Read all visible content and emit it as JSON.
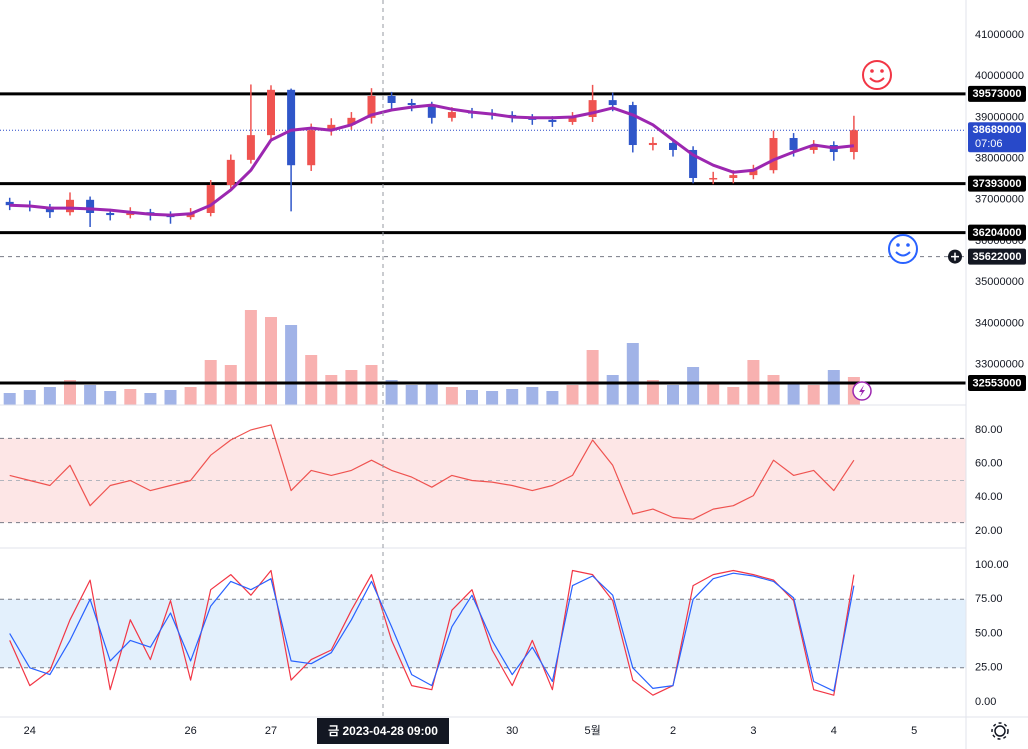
{
  "chart_data": [
    {
      "type": "candlestick",
      "categories": [
        null,
        "24",
        null,
        null,
        null,
        null,
        null,
        null,
        null,
        "26",
        null,
        null,
        null,
        "27",
        null,
        null,
        null,
        null,
        null,
        null,
        null,
        null,
        null,
        null,
        null,
        "30",
        null,
        null,
        null,
        "5월",
        null,
        null,
        null,
        "2",
        null,
        null,
        null,
        "3",
        null,
        null,
        null,
        "4",
        null,
        null,
        null,
        "5"
      ],
      "open": [
        36950000,
        36870000,
        36830000,
        36700000,
        37000000,
        36680000,
        36630000,
        36700000,
        36630000,
        36580000,
        36680000,
        37360000,
        37970000,
        38570000,
        39670000,
        37840000,
        38690000,
        38820000,
        38990000,
        39520000,
        39350000,
        39300000,
        38990000,
        39130000,
        39110000,
        39060000,
        39010000,
        38940000,
        38890000,
        39010000,
        39420000,
        39300000,
        38330000,
        38380000,
        38210000,
        37530000,
        37530000,
        37600000,
        37720000,
        38500000,
        38210000,
        38330000,
        38160000,
        null,
        null,
        null
      ],
      "high": [
        37050000,
        36980000,
        36900000,
        37180000,
        37080000,
        36780000,
        36820000,
        36780000,
        36720000,
        36800000,
        37480000,
        38100000,
        39800000,
        39780000,
        39700000,
        38850000,
        38980000,
        39130000,
        39710000,
        39620000,
        39450000,
        39380000,
        39250000,
        39230000,
        39200000,
        39150000,
        39080000,
        39030000,
        39130000,
        39790000,
        39600000,
        39380000,
        38520000,
        38460000,
        38300000,
        37680000,
        37720000,
        37850000,
        38680000,
        38620000,
        38450000,
        38420000,
        39040000,
        null,
        null,
        null
      ],
      "low": [
        36750000,
        36720000,
        36560000,
        36620000,
        36340000,
        36500000,
        36550000,
        36500000,
        36420000,
        36520000,
        36600000,
        37280000,
        37880000,
        38420000,
        36720000,
        37700000,
        38560000,
        38700000,
        38850000,
        39180000,
        39150000,
        38850000,
        38900000,
        38980000,
        38950000,
        38880000,
        38820000,
        38770000,
        38820000,
        38890000,
        39150000,
        38150000,
        38200000,
        38050000,
        37400000,
        37380000,
        37400000,
        37500000,
        37640000,
        38050000,
        38120000,
        37950000,
        37980000,
        null,
        null,
        null
      ],
      "close": [
        36870000,
        36830000,
        36700000,
        37000000,
        36680000,
        36630000,
        36700000,
        36630000,
        36580000,
        36680000,
        37360000,
        37970000,
        38570000,
        39670000,
        37840000,
        38690000,
        38820000,
        38990000,
        39520000,
        39350000,
        39300000,
        38990000,
        39130000,
        39110000,
        39060000,
        39010000,
        38940000,
        38890000,
        39010000,
        39420000,
        39300000,
        38330000,
        38380000,
        38210000,
        37530000,
        37530000,
        37600000,
        37720000,
        38500000,
        38210000,
        38330000,
        38160000,
        38689000,
        null,
        null,
        null
      ],
      "up_color": "#ef5350",
      "down_color": "#2f56c9",
      "ma": {
        "color": "#9c27b0",
        "values": [
          36870000,
          36850000,
          36800000,
          36800000,
          36780000,
          36750000,
          36700000,
          36650000,
          36630000,
          36660000,
          36870000,
          37240000,
          37720000,
          38450000,
          38690000,
          38740000,
          38690000,
          38820000,
          39060000,
          39180000,
          39250000,
          39300000,
          39200000,
          39130000,
          39080000,
          39010000,
          38990000,
          38990000,
          39010000,
          39110000,
          39230000,
          39060000,
          38820000,
          38450000,
          38090000,
          37840000,
          37670000,
          37720000,
          37970000,
          38160000,
          38330000,
          38260000,
          38310000,
          null,
          null,
          null
        ]
      },
      "volume": {
        "values": [
          12,
          15,
          18,
          25,
          20,
          14,
          16,
          12,
          15,
          18,
          45,
          40,
          95,
          88,
          80,
          50,
          30,
          35,
          40,
          25,
          20,
          22,
          18,
          15,
          14,
          16,
          18,
          14,
          20,
          55,
          30,
          62,
          25,
          20,
          38,
          22,
          18,
          45,
          30,
          22,
          20,
          35,
          28,
          null,
          null,
          null
        ]
      },
      "ylim": [
        32020000,
        41850000
      ],
      "yticks": [
        33000000,
        34000000,
        35000000,
        36000000,
        37000000,
        38000000,
        39000000,
        40000000,
        41000000
      ],
      "price_lines": [
        39573000,
        37393000,
        36204000,
        32553000
      ],
      "alert_line": 35622000,
      "last_price": 38689000,
      "last_price_color": "#2849c9",
      "countdown": "07:06",
      "grid": false
    },
    {
      "type": "line",
      "series": [
        {
          "color": "#ef5350",
          "values": [
            53,
            50,
            47,
            59,
            35,
            47,
            50,
            44,
            47,
            50,
            65,
            74,
            80,
            83,
            44,
            56,
            53,
            56,
            62,
            56,
            52,
            46,
            53,
            50,
            49,
            47,
            44,
            47,
            53,
            74,
            59,
            30,
            33,
            28,
            27,
            33,
            35,
            41,
            62,
            53,
            56,
            44,
            62,
            null,
            null,
            null
          ]
        }
      ],
      "ylim": [
        9.9,
        94.8
      ],
      "yticks": [
        {
          "value": 20,
          "label": "20.00"
        },
        {
          "value": 40,
          "label": "40.00"
        },
        {
          "value": 60,
          "label": "60.00"
        },
        {
          "value": 80,
          "label": "80.00"
        }
      ],
      "band": [
        25,
        75
      ],
      "midline": 50,
      "band_color": "#fde6e6",
      "grid": false
    },
    {
      "type": "line",
      "series": [
        {
          "color": "#f23645",
          "values": [
            45,
            12,
            23,
            60,
            89,
            9,
            60,
            31,
            74,
            16,
            82,
            93,
            78,
            96,
            16,
            31,
            38,
            67,
            93,
            45,
            12,
            9,
            67,
            82,
            38,
            12,
            45,
            9,
            96,
            93,
            74,
            16,
            5,
            12,
            85,
            93,
            96,
            93,
            89,
            74,
            9,
            5,
            93,
            null,
            null,
            null
          ]
        },
        {
          "color": "#2962ff",
          "values": [
            50,
            25,
            20,
            45,
            75,
            30,
            45,
            40,
            65,
            30,
            70,
            88,
            82,
            90,
            30,
            28,
            36,
            60,
            88,
            55,
            20,
            12,
            55,
            78,
            45,
            20,
            40,
            15,
            85,
            92,
            78,
            25,
            10,
            12,
            75,
            90,
            94,
            92,
            88,
            76,
            15,
            8,
            85,
            null,
            null,
            null
          ]
        }
      ],
      "ylim": [
        -10.9,
        112.4
      ],
      "yticks": [
        {
          "value": 0,
          "label": "0.00"
        },
        {
          "value": 25,
          "label": "25.00"
        },
        {
          "value": 50,
          "label": "50.00"
        },
        {
          "value": 75,
          "label": "75.00"
        },
        {
          "value": 100,
          "label": "100.00"
        }
      ],
      "band": [
        25,
        75
      ],
      "band_color": "#e3f0fc",
      "grid": false
    }
  ],
  "crosshair_label": "금 2023-04-28 09:00"
}
